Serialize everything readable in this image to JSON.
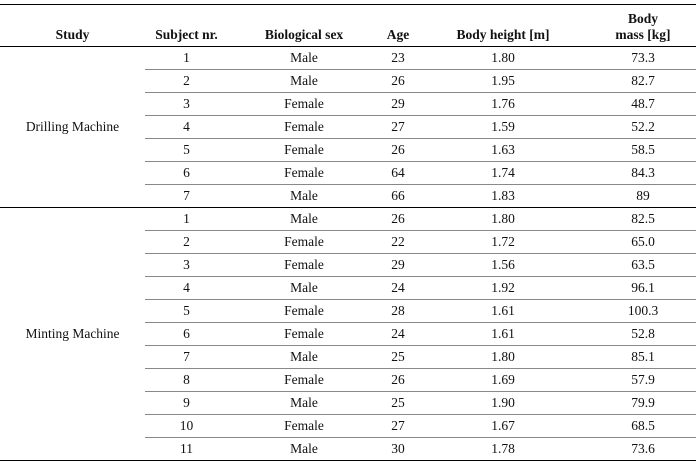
{
  "table": {
    "header": [
      "Study",
      "Subject nr.",
      "Biological sex",
      "Age",
      "Body height [m]",
      "Body mass [kg]"
    ],
    "groups": [
      {
        "study": "Drilling Machine",
        "rows": [
          [
            "1",
            "Male",
            "23",
            "1.80",
            "73.3"
          ],
          [
            "2",
            "Male",
            "26",
            "1.95",
            "82.7"
          ],
          [
            "3",
            "Female",
            "29",
            "1.76",
            "48.7"
          ],
          [
            "4",
            "Female",
            "27",
            "1.59",
            "52.2"
          ],
          [
            "5",
            "Female",
            "26",
            "1.63",
            "58.5"
          ],
          [
            "6",
            "Female",
            "64",
            "1.74",
            "84.3"
          ],
          [
            "7",
            "Male",
            "66",
            "1.83",
            "89"
          ]
        ]
      },
      {
        "study": "Minting Machine",
        "rows": [
          [
            "1",
            "Male",
            "26",
            "1.80",
            "82.5"
          ],
          [
            "2",
            "Female",
            "22",
            "1.72",
            "65.0"
          ],
          [
            "3",
            "Female",
            "29",
            "1.56",
            "63.5"
          ],
          [
            "4",
            "Male",
            "24",
            "1.92",
            "96.1"
          ],
          [
            "5",
            "Female",
            "28",
            "1.61",
            "100.3"
          ],
          [
            "6",
            "Female",
            "24",
            "1.61",
            "52.8"
          ],
          [
            "7",
            "Male",
            "25",
            "1.80",
            "85.1"
          ],
          [
            "8",
            "Female",
            "26",
            "1.69",
            "57.9"
          ],
          [
            "9",
            "Male",
            "25",
            "1.90",
            "79.9"
          ],
          [
            "10",
            "Female",
            "27",
            "1.67",
            "68.5"
          ],
          [
            "11",
            "Male",
            "30",
            "1.78",
            "73.6"
          ]
        ]
      }
    ]
  }
}
